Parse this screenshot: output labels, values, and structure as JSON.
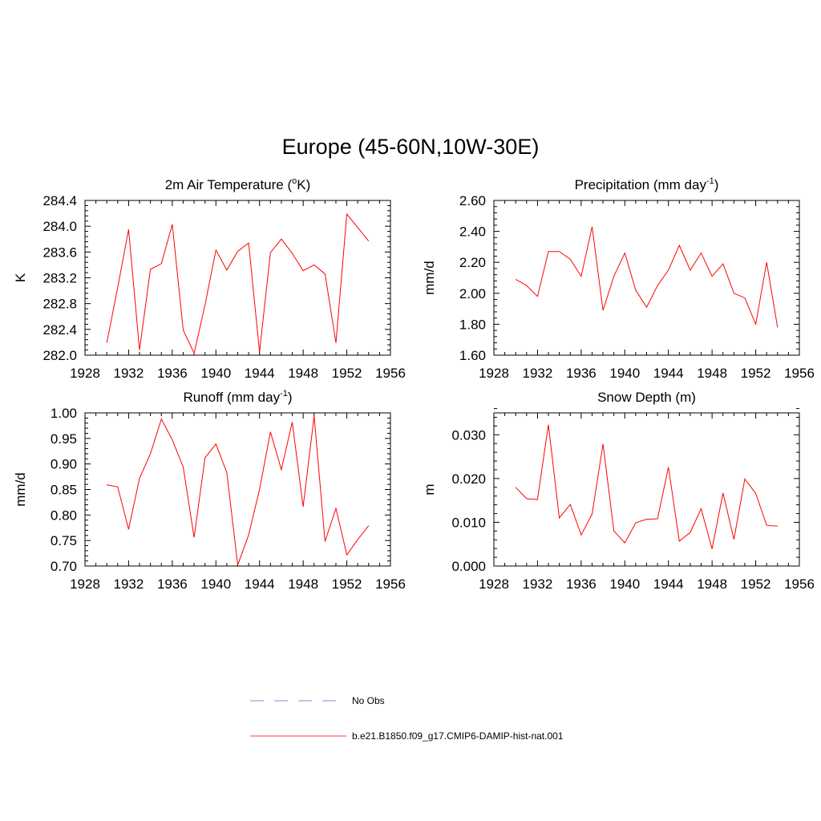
{
  "title": "Europe (45-60N,10W-30E)",
  "legend": {
    "items": [
      {
        "label": "No Obs",
        "color": "#a0a0e0",
        "style": "dashed"
      },
      {
        "label": "b.e21.B1850.f09_g17.CMIP6-DAMIP-hist-nat.001",
        "color": "#ff6060",
        "style": "solid"
      }
    ]
  },
  "chart_data": [
    {
      "type": "line",
      "title": "2m Air Temperature (°K)",
      "title_main": "2m Air Temperature (",
      "title_sup": "o",
      "title_end": "K)",
      "ylabel": "K",
      "xlim": [
        1928,
        1956
      ],
      "ylim": [
        282.0,
        284.4
      ],
      "xticks": [
        "1928",
        "1932",
        "1936",
        "1940",
        "1944",
        "1948",
        "1952",
        "1956"
      ],
      "yticks": [
        "282.0",
        "282.4",
        "282.8",
        "283.2",
        "283.6",
        "284.0",
        "284.4"
      ],
      "series": [
        {
          "color": "#ff0000",
          "x": [
            1930,
            1931,
            1932,
            1933,
            1934,
            1935,
            1936,
            1937,
            1938,
            1939,
            1940,
            1941,
            1942,
            1943,
            1944,
            1945,
            1946,
            1947,
            1948,
            1949,
            1950,
            1951,
            1952,
            1953,
            1954
          ],
          "y": [
            282.19,
            283.05,
            283.95,
            282.08,
            283.33,
            283.42,
            284.03,
            282.39,
            282.03,
            282.78,
            283.63,
            283.32,
            283.61,
            283.74,
            282.05,
            283.59,
            283.8,
            283.58,
            283.31,
            283.4,
            283.26,
            282.19,
            284.19,
            283.98,
            283.77
          ]
        }
      ]
    },
    {
      "type": "line",
      "title": "Precipitation (mm day-1)",
      "title_main": "Precipitation (mm day",
      "title_sup": "-1",
      "title_end": ")",
      "ylabel": "mm/d",
      "xlim": [
        1928,
        1956
      ],
      "ylim": [
        1.6,
        2.6
      ],
      "xticks": [
        "1928",
        "1932",
        "1936",
        "1940",
        "1944",
        "1948",
        "1952",
        "1956"
      ],
      "yticks": [
        "1.60",
        "1.80",
        "2.00",
        "2.20",
        "2.40",
        "2.60"
      ],
      "series": [
        {
          "color": "#ff0000",
          "x": [
            1930,
            1931,
            1932,
            1933,
            1934,
            1935,
            1936,
            1937,
            1938,
            1939,
            1940,
            1941,
            1942,
            1943,
            1944,
            1945,
            1946,
            1947,
            1948,
            1949,
            1950,
            1951,
            1952,
            1953,
            1954
          ],
          "y": [
            2.09,
            2.05,
            1.98,
            2.27,
            2.27,
            2.22,
            2.11,
            2.43,
            1.89,
            2.11,
            2.26,
            2.02,
            1.91,
            2.05,
            2.15,
            2.31,
            2.15,
            2.26,
            2.11,
            2.19,
            2.0,
            1.97,
            1.8,
            2.2,
            1.78
          ]
        }
      ]
    },
    {
      "type": "line",
      "title": "Runoff (mm day-1)",
      "title_main": "Runoff (mm day",
      "title_sup": "-1",
      "title_end": ")",
      "ylabel": "mm/d",
      "xlim": [
        1928,
        1956
      ],
      "ylim": [
        0.7,
        1.0
      ],
      "xticks": [
        "1928",
        "1932",
        "1936",
        "1940",
        "1944",
        "1948",
        "1952",
        "1956"
      ],
      "yticks": [
        "0.70",
        "0.75",
        "0.80",
        "0.85",
        "0.90",
        "0.95",
        "1.00"
      ],
      "series": [
        {
          "color": "#ff0000",
          "x": [
            1930,
            1931,
            1932,
            1933,
            1934,
            1935,
            1936,
            1937,
            1938,
            1939,
            1940,
            1941,
            1942,
            1943,
            1944,
            1945,
            1946,
            1947,
            1948,
            1949,
            1950,
            1951,
            1952,
            1953,
            1954
          ],
          "y": [
            0.859,
            0.855,
            0.772,
            0.872,
            0.92,
            0.988,
            0.947,
            0.894,
            0.756,
            0.912,
            0.939,
            0.883,
            0.702,
            0.761,
            0.85,
            0.963,
            0.889,
            0.982,
            0.816,
            0.994,
            0.748,
            0.813,
            0.722,
            0.752,
            0.779
          ]
        }
      ]
    },
    {
      "type": "line",
      "title": "Snow Depth (m)",
      "title_main": "Snow Depth (m)",
      "title_sup": "",
      "title_end": "",
      "ylabel": "m",
      "xlim": [
        1928,
        1956
      ],
      "ylim": [
        0.0,
        0.035
      ],
      "xticks": [
        "1928",
        "1932",
        "1936",
        "1940",
        "1944",
        "1948",
        "1952",
        "1956"
      ],
      "yticks": [
        "0.000",
        "0.010",
        "0.020",
        "0.030"
      ],
      "ytick_values": [
        0.0,
        0.01,
        0.02,
        0.03
      ],
      "series": [
        {
          "color": "#ff0000",
          "x": [
            1930,
            1931,
            1932,
            1933,
            1934,
            1935,
            1936,
            1937,
            1938,
            1939,
            1940,
            1941,
            1942,
            1943,
            1944,
            1945,
            1946,
            1947,
            1948,
            1949,
            1950,
            1951,
            1952,
            1953,
            1954
          ],
          "y": [
            0.018,
            0.0154,
            0.0152,
            0.0323,
            0.011,
            0.0141,
            0.0071,
            0.0119,
            0.0279,
            0.008,
            0.0053,
            0.0099,
            0.0107,
            0.0108,
            0.0226,
            0.0057,
            0.0077,
            0.0131,
            0.0039,
            0.0167,
            0.0061,
            0.0199,
            0.0166,
            0.0093,
            0.0091
          ]
        }
      ]
    }
  ]
}
